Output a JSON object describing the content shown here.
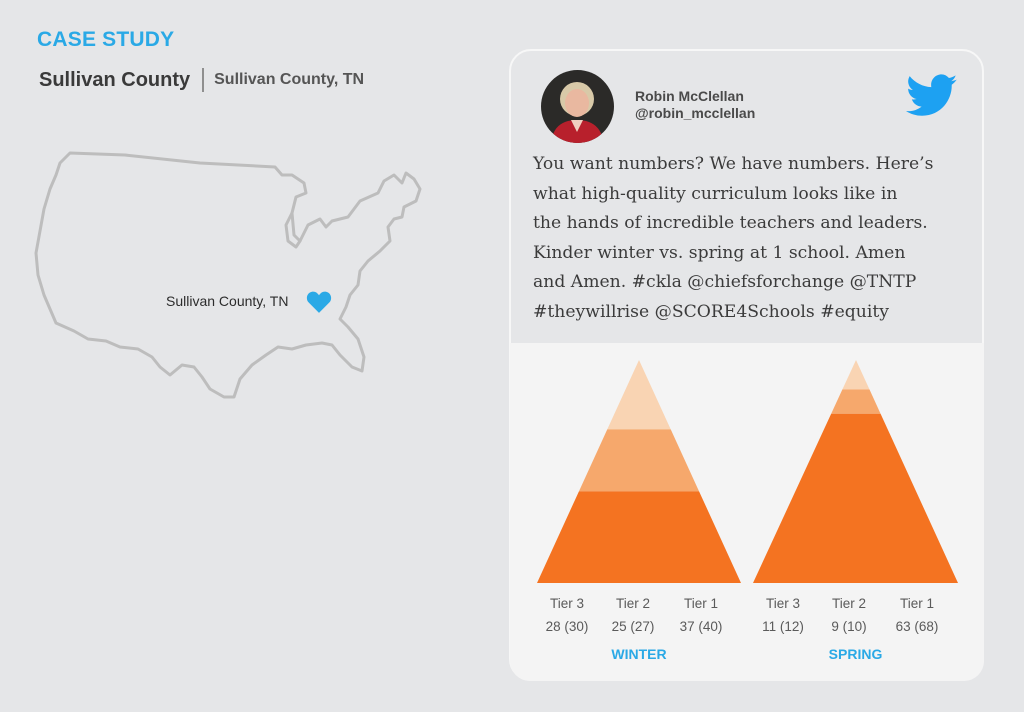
{
  "header": {
    "label": "CASE STUDY",
    "title": "Sullivan County",
    "subtitle": "Sullivan County, TN"
  },
  "map": {
    "pin_label": "Sullivan County, TN",
    "pin_icon": "heart-icon",
    "pin_color": "#2aa9e6"
  },
  "tweet": {
    "author_name": "Robin McClellan",
    "author_handle": "@robin_mcclellan",
    "brand_icon": "twitter-bird-icon",
    "brand_color": "#1da1f2",
    "text": "You want numbers? We have numbers. Here’s\nwhat high-quality curriculum looks like in\nthe hands of incredible teachers and leaders.\nKinder winter vs. spring at 1 school. Amen\nand Amen. #ckla @chiefsforchange @TNTP\n#theywillrise @SCORE4Schools #equity"
  },
  "chart_data": {
    "type": "pyramid",
    "colors": {
      "tier1": "#f47321",
      "tier2": "#f6a86c",
      "tier3": "#f9d4b3"
    },
    "charts": [
      {
        "name": "WINTER",
        "tiers": [
          {
            "label": "Tier 3",
            "value_text": "28 (30)",
            "count": 28,
            "percent": 30
          },
          {
            "label": "Tier 2",
            "value_text": "25 (27)",
            "count": 25,
            "percent": 27
          },
          {
            "label": "Tier 1",
            "value_text": "37 (40)",
            "count": 37,
            "percent": 40
          }
        ]
      },
      {
        "name": "SPRING",
        "tiers": [
          {
            "label": "Tier 3",
            "value_text": "11 (12)",
            "count": 11,
            "percent": 12
          },
          {
            "label": "Tier 2",
            "value_text": "9 (10)",
            "count": 9,
            "percent": 10
          },
          {
            "label": "Tier 1",
            "value_text": "63 (68)",
            "count": 63,
            "percent": 68
          }
        ]
      }
    ]
  }
}
